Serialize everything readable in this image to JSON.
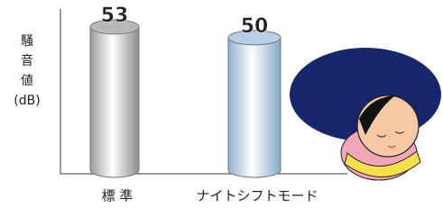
{
  "chart_data": {
    "type": "bar",
    "y_label": [
      "騒",
      "音",
      "値",
      "(dB)"
    ],
    "categories": [
      "標 準",
      "ナイトシフトモード"
    ],
    "values": [
      53,
      50
    ],
    "colors": [
      "#b8b8b8",
      "#b7cfe6"
    ],
    "ylim": [
      12,
      58
    ]
  }
}
